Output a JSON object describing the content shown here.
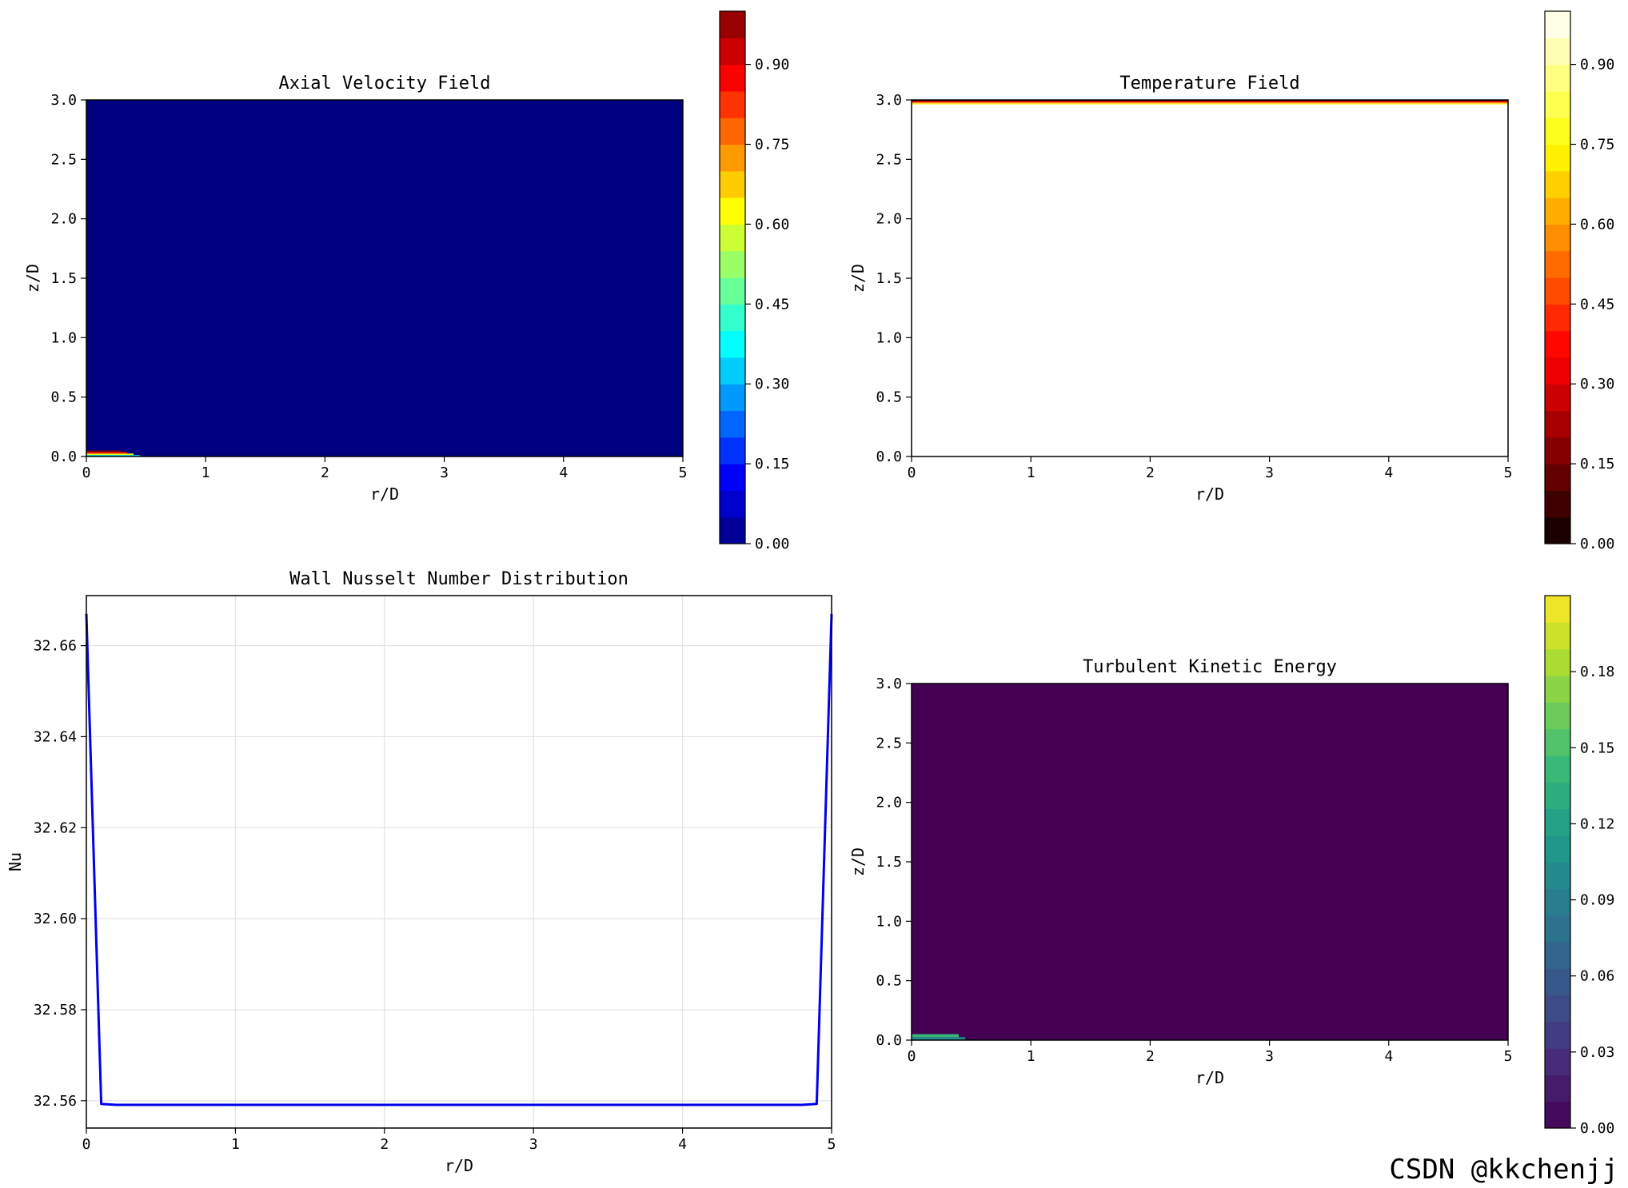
{
  "watermark": "CSDN @kkchenjj",
  "chart_data": [
    {
      "id": "velocity",
      "type": "heatmap",
      "title": "Axial Velocity Field",
      "xlabel": "r/D",
      "ylabel": "z/D",
      "xlim": [
        0,
        5
      ],
      "ylim": [
        0,
        3
      ],
      "xticks": [
        0,
        1,
        2,
        3,
        4,
        5
      ],
      "xtick_labels": [
        "0",
        "1",
        "2",
        "3",
        "4",
        "5"
      ],
      "yticks": [
        0,
        0.5,
        1,
        1.5,
        2,
        2.5,
        3
      ],
      "ytick_labels": [
        "0.0",
        "0.5",
        "1.0",
        "1.5",
        "2.0",
        "2.5",
        "3.0"
      ],
      "colormap": "jet",
      "levels": 20,
      "colorbar_range": [
        0,
        1
      ],
      "colorbar_ticks": [
        0,
        0.15,
        0.3,
        0.45,
        0.6,
        0.75,
        0.9
      ],
      "colorbar_tick_labels": [
        "0.00",
        "0.15",
        "0.30",
        "0.45",
        "0.60",
        "0.75",
        "0.90"
      ],
      "background_value": 0.0,
      "feature": {
        "location": "bottom",
        "r_range": [
          0,
          0.45
        ],
        "z_range": [
          0,
          0.05
        ],
        "value_max": 1.0,
        "band_values": [
          0.35,
          0.6,
          0.85,
          1.0
        ]
      }
    },
    {
      "id": "temperature",
      "type": "heatmap",
      "title": "Temperature Field",
      "xlabel": "r/D",
      "ylabel": "z/D",
      "xlim": [
        0,
        5
      ],
      "ylim": [
        0,
        3
      ],
      "xticks": [
        0,
        1,
        2,
        3,
        4,
        5
      ],
      "xtick_labels": [
        "0",
        "1",
        "2",
        "3",
        "4",
        "5"
      ],
      "yticks": [
        0,
        0.5,
        1,
        1.5,
        2,
        2.5,
        3
      ],
      "ytick_labels": [
        "0.0",
        "0.5",
        "1.0",
        "1.5",
        "2.0",
        "2.5",
        "3.0"
      ],
      "colormap": "hot",
      "levels": 20,
      "colorbar_range": [
        0,
        1
      ],
      "colorbar_ticks": [
        0,
        0.15,
        0.3,
        0.45,
        0.6,
        0.75,
        0.9
      ],
      "colorbar_tick_labels": [
        "0.00",
        "0.15",
        "0.30",
        "0.45",
        "0.60",
        "0.75",
        "0.90"
      ],
      "background_value": 1.0,
      "feature": {
        "location": "top",
        "r_range": [
          0,
          5
        ],
        "z_range": [
          2.96,
          3.0
        ],
        "band_values": [
          0.05,
          0.35,
          0.6,
          0.85
        ]
      }
    },
    {
      "id": "nusselt",
      "type": "line",
      "title": "Wall Nusselt Number Distribution",
      "xlabel": "r/D",
      "ylabel": "Nu",
      "xlim": [
        0,
        5
      ],
      "ylim": [
        32.554,
        32.671
      ],
      "xticks": [
        0,
        1,
        2,
        3,
        4,
        5
      ],
      "xtick_labels": [
        "0",
        "1",
        "2",
        "3",
        "4",
        "5"
      ],
      "yticks": [
        32.56,
        32.58,
        32.6,
        32.62,
        32.64,
        32.66
      ],
      "ytick_labels": [
        "32.56",
        "32.58",
        "32.60",
        "32.62",
        "32.64",
        "32.66"
      ],
      "grid": true,
      "line_color": "#0000ee",
      "x": [
        0,
        0.1,
        0.2,
        0.5,
        1,
        2,
        3,
        4,
        4.5,
        4.8,
        4.9,
        5
      ],
      "y": [
        32.667,
        32.5593,
        32.5591,
        32.5591,
        32.5591,
        32.5591,
        32.5591,
        32.5591,
        32.5591,
        32.5591,
        32.5593,
        32.667
      ]
    },
    {
      "id": "tke",
      "type": "heatmap",
      "title": "Turbulent Kinetic Energy",
      "xlabel": "r/D",
      "ylabel": "z/D",
      "xlim": [
        0,
        5
      ],
      "ylim": [
        0,
        3
      ],
      "xticks": [
        0,
        1,
        2,
        3,
        4,
        5
      ],
      "xtick_labels": [
        "0",
        "1",
        "2",
        "3",
        "4",
        "5"
      ],
      "yticks": [
        0,
        0.5,
        1,
        1.5,
        2,
        2.5,
        3
      ],
      "ytick_labels": [
        "0.0",
        "0.5",
        "1.0",
        "1.5",
        "2.0",
        "2.5",
        "3.0"
      ],
      "colormap": "viridis",
      "levels": 20,
      "colorbar_range": [
        0,
        0.21
      ],
      "colorbar_ticks": [
        0,
        0.03,
        0.06,
        0.09,
        0.12,
        0.15,
        0.18
      ],
      "colorbar_tick_labels": [
        "0.00",
        "0.03",
        "0.06",
        "0.09",
        "0.12",
        "0.15",
        "0.18"
      ],
      "background_value": 0.0,
      "feature": {
        "location": "bottom",
        "r_range": [
          0,
          0.45
        ],
        "z_range": [
          0,
          0.05
        ],
        "band_values": [
          0.1,
          0.14
        ]
      }
    }
  ]
}
